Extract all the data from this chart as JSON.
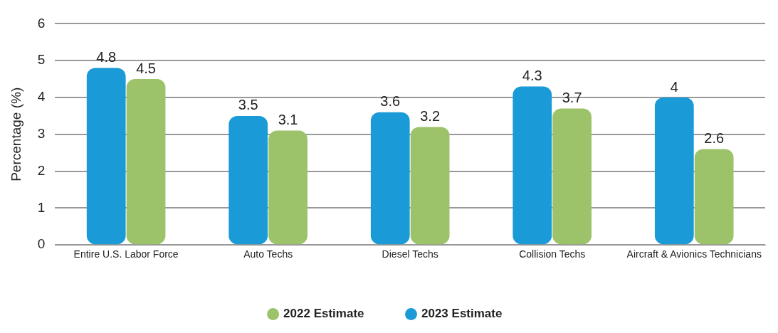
{
  "chart_data": {
    "type": "bar",
    "categories": [
      "Entire U.S. Labor Force",
      "Auto Techs",
      "Diesel Techs",
      "Collision Techs",
      "Aircraft & Avionics Technicians"
    ],
    "series": [
      {
        "name": "2023 Estimate",
        "color": "#1a9ad6",
        "values": [
          4.8,
          3.5,
          3.6,
          4.3,
          4
        ]
      },
      {
        "name": "2022 Estimate",
        "color": "#9cc26a",
        "values": [
          4.5,
          3.1,
          3.2,
          3.7,
          2.6
        ]
      }
    ],
    "ylabel": "Percentage (%)",
    "ylim": [
      0,
      6
    ],
    "yticks": [
      0,
      1,
      2,
      3,
      4,
      5,
      6
    ],
    "grid": "y",
    "legend": "bottom",
    "data_labels": true
  }
}
